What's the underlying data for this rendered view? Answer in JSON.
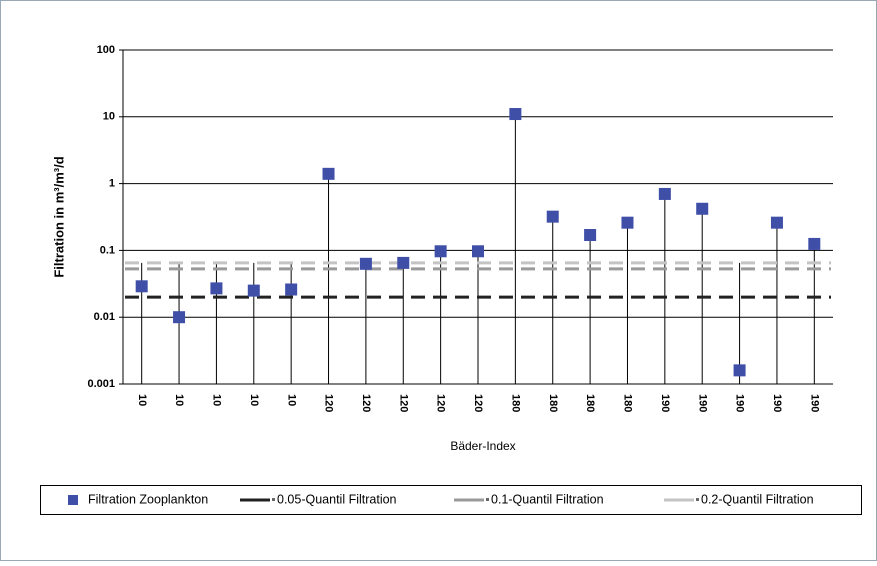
{
  "chart_data": {
    "type": "scatter",
    "y_label": "Filtration in m³/m³/d",
    "x_label": "Bäder-Index",
    "categories": [
      "10",
      "10",
      "10",
      "10",
      "10",
      "120",
      "120",
      "120",
      "120",
      "120",
      "180",
      "180",
      "180",
      "180",
      "190",
      "190",
      "190",
      "190",
      "190"
    ],
    "ylim": [
      0.001,
      100
    ],
    "yticks": [
      0.001,
      0.01,
      0.1,
      1,
      10,
      100
    ],
    "log_y": true,
    "grid": true,
    "legend": "bottom",
    "series": [
      {
        "name": "Filtration Zooplankton",
        "color": "#3f4fa8",
        "style": "marker",
        "values": [
          0.029,
          0.01,
          0.027,
          0.025,
          0.026,
          1.4,
          0.063,
          0.065,
          0.097,
          0.097,
          11,
          0.32,
          0.17,
          0.26,
          0.7,
          0.42,
          0.0016,
          0.26,
          0.125
        ]
      },
      {
        "name": "0.05-Quantil Filtration",
        "color": "#222222",
        "style": "dashed",
        "values": [
          0.02,
          0.02,
          0.02,
          0.02,
          0.02,
          0.02,
          0.02,
          0.02,
          0.02,
          0.02,
          0.02,
          0.02,
          0.02,
          0.02,
          0.02,
          0.02,
          0.02,
          0.02,
          0.02
        ]
      },
      {
        "name": "0.1-Quantil Filtration",
        "color": "#9a9a9a",
        "style": "dashed",
        "values": [
          0.053,
          0.053,
          0.053,
          0.053,
          0.053,
          0.053,
          0.053,
          0.053,
          0.053,
          0.053,
          0.053,
          0.053,
          0.053,
          0.053,
          0.053,
          0.053,
          0.053,
          0.053,
          0.053
        ]
      },
      {
        "name": "0.2-Quantil Filtration",
        "color": "#c4c4c4",
        "style": "dashed",
        "values": [
          0.065,
          0.065,
          0.065,
          0.065,
          0.065,
          0.065,
          0.065,
          0.065,
          0.065,
          0.065,
          0.065,
          0.065,
          0.065,
          0.065,
          0.065,
          0.065,
          0.065,
          0.065,
          0.065
        ]
      }
    ]
  }
}
